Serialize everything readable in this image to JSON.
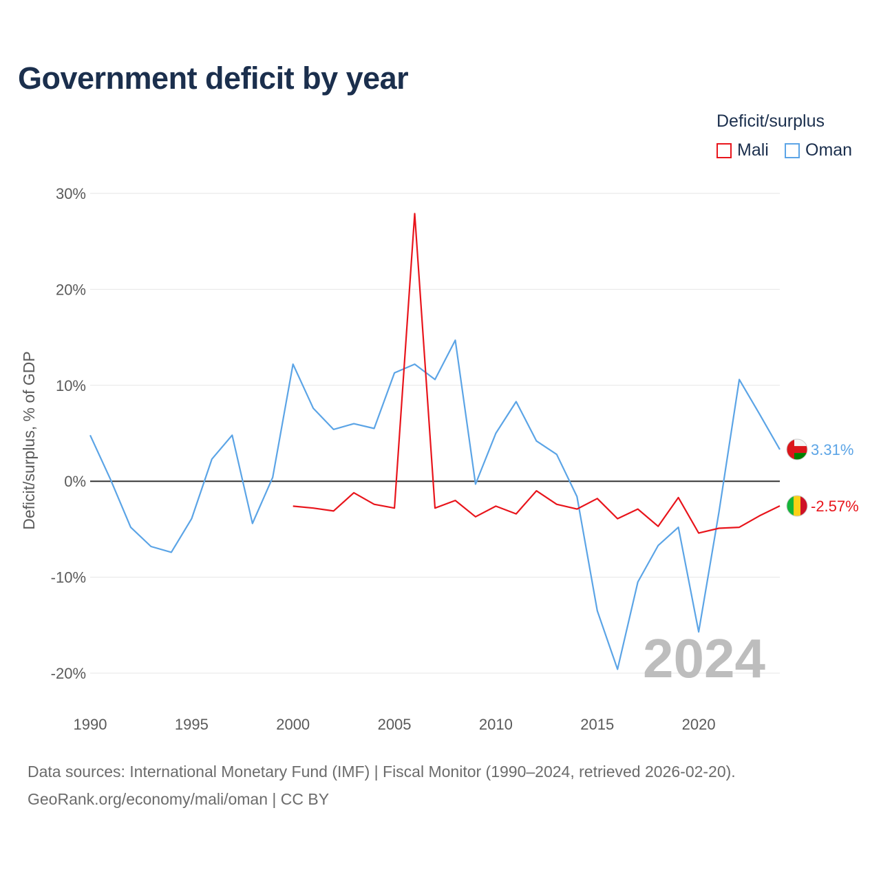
{
  "title": "Government deficit by year",
  "legend": {
    "title": "Deficit/surplus",
    "items": [
      {
        "name": "Mali",
        "color": "#e8141b"
      },
      {
        "name": "Oman",
        "color": "#5ba4e6"
      }
    ]
  },
  "chart_data": {
    "type": "line",
    "title": "Government deficit by year",
    "xlabel": "",
    "ylabel": "Deficit/surplus, % of GDP",
    "xlim": [
      1990,
      2024
    ],
    "ylim": [
      -20,
      30
    ],
    "x_ticks": [
      1990,
      1995,
      2000,
      2005,
      2010,
      2015,
      2020
    ],
    "y_ticks": [
      {
        "value": 30,
        "label": "30%"
      },
      {
        "value": 20,
        "label": "20%"
      },
      {
        "value": 10,
        "label": "10%"
      },
      {
        "value": 0,
        "label": "0%"
      },
      {
        "value": -10,
        "label": "-10%"
      },
      {
        "value": -20,
        "label": "-20%"
      }
    ],
    "zero_line": true,
    "watermark_year": "2024",
    "series": [
      {
        "name": "Mali",
        "color": "#e8141b",
        "end_label": "-2.57%",
        "points": [
          [
            2000,
            -2.6
          ],
          [
            2001,
            -2.8
          ],
          [
            2002,
            -3.1
          ],
          [
            2003,
            -1.2
          ],
          [
            2004,
            -2.4
          ],
          [
            2005,
            -2.8
          ],
          [
            2006,
            27.9
          ],
          [
            2007,
            -2.8
          ],
          [
            2008,
            -2.0
          ],
          [
            2009,
            -3.7
          ],
          [
            2010,
            -2.6
          ],
          [
            2011,
            -3.4
          ],
          [
            2012,
            -1.0
          ],
          [
            2013,
            -2.4
          ],
          [
            2014,
            -2.9
          ],
          [
            2015,
            -1.8
          ],
          [
            2016,
            -3.9
          ],
          [
            2017,
            -2.9
          ],
          [
            2018,
            -4.7
          ],
          [
            2019,
            -1.7
          ],
          [
            2020,
            -5.4
          ],
          [
            2021,
            -4.9
          ],
          [
            2022,
            -4.8
          ],
          [
            2023,
            -3.6
          ],
          [
            2024,
            -2.57
          ]
        ]
      },
      {
        "name": "Oman",
        "color": "#5ba4e6",
        "end_label": "3.31%",
        "points": [
          [
            1990,
            4.8
          ],
          [
            1991,
            0.2
          ],
          [
            1992,
            -4.8
          ],
          [
            1993,
            -6.8
          ],
          [
            1994,
            -7.4
          ],
          [
            1995,
            -3.9
          ],
          [
            1996,
            2.3
          ],
          [
            1997,
            4.8
          ],
          [
            1998,
            -4.4
          ],
          [
            1999,
            0.4
          ],
          [
            2000,
            12.2
          ],
          [
            2001,
            7.6
          ],
          [
            2002,
            5.4
          ],
          [
            2003,
            6.0
          ],
          [
            2004,
            5.5
          ],
          [
            2005,
            11.3
          ],
          [
            2006,
            12.2
          ],
          [
            2007,
            10.6
          ],
          [
            2008,
            14.7
          ],
          [
            2009,
            -0.3
          ],
          [
            2010,
            5.0
          ],
          [
            2011,
            8.3
          ],
          [
            2012,
            4.2
          ],
          [
            2013,
            2.8
          ],
          [
            2014,
            -1.6
          ],
          [
            2015,
            -13.5
          ],
          [
            2016,
            -19.6
          ],
          [
            2017,
            -10.5
          ],
          [
            2018,
            -6.7
          ],
          [
            2019,
            -4.8
          ],
          [
            2020,
            -15.7
          ],
          [
            2021,
            -3.2
          ],
          [
            2022,
            10.6
          ],
          [
            2023,
            7.0
          ],
          [
            2024,
            3.31
          ]
        ]
      }
    ]
  },
  "footer": {
    "sources": "Data sources: International Monetary Fund (IMF) | Fiscal Monitor (1990–2024, retrieved 2026-02-20).",
    "credit": "GeoRank.org/economy/mali/oman | CC BY"
  }
}
